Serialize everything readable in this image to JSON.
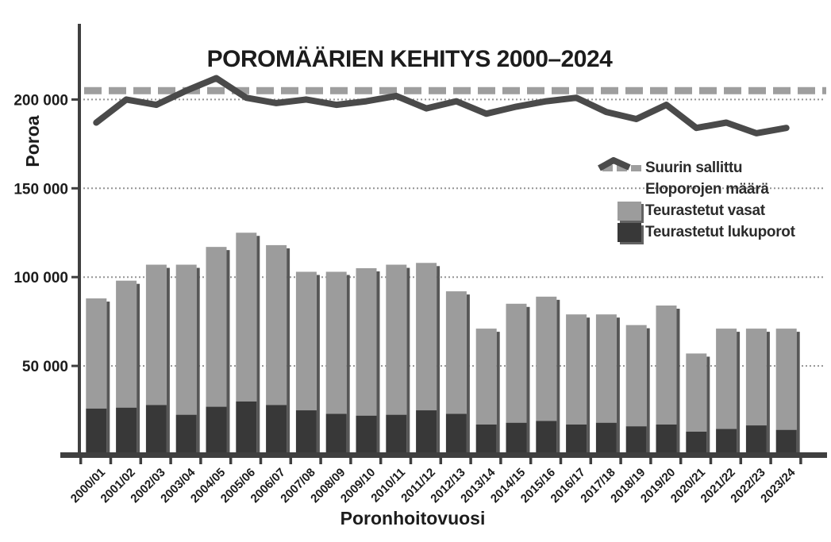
{
  "title": "POROMÄÄRIEN KEHITYS 2000–2024",
  "colors": {
    "background": "#ffffff",
    "bar_dark": "#383838",
    "bar_light": "#9c9c9c",
    "line": "#4a4a4a",
    "dashed_line": "#9e9e9e",
    "axis": "#3f3f3f",
    "grid": "#949494",
    "text": "#1c1c1c"
  },
  "chart_data": {
    "type": "bar",
    "subtype": "stacked-bars-with-line",
    "title": "POROMÄÄRIEN KEHITYS 2000–2024",
    "xlabel": "Poronhoitovuosi",
    "ylabel": "Poroa",
    "ylim": [
      0,
      242000
    ],
    "grid": "horizontal-dotted",
    "legend_position": "right-middle",
    "yticks": [
      {
        "value": 50000,
        "label": "50 000"
      },
      {
        "value": 100000,
        "label": "100 000"
      },
      {
        "value": 150000,
        "label": "150 000"
      },
      {
        "value": 200000,
        "label": "200 000"
      }
    ],
    "categories": [
      "2000/01",
      "2001/02",
      "2002/03",
      "2003/04",
      "2004/05",
      "2005/06",
      "2006/07",
      "2007/08",
      "2008/09",
      "2009/10",
      "2010/11",
      "2011/12",
      "2012/13",
      "2013/14",
      "2014/15",
      "2015/16",
      "2016/17",
      "2017/18",
      "2018/19",
      "2019/20",
      "2020/21",
      "2021/22",
      "2022/23",
      "2023/24"
    ],
    "series": [
      {
        "name": "Teurastetut lukuporot",
        "kind": "bar",
        "stack": "teurastus",
        "color": "#383838",
        "values": [
          26000,
          26500,
          28000,
          22500,
          27000,
          30000,
          28000,
          25000,
          23000,
          22000,
          22500,
          25000,
          23000,
          17000,
          18000,
          19000,
          17000,
          18000,
          16000,
          17000,
          13000,
          14500,
          16500,
          14000
        ]
      },
      {
        "name": "Teurastetut vasat",
        "kind": "bar",
        "stack": "teurastus",
        "color": "#9c9c9c",
        "values": [
          62000,
          71500,
          79000,
          84500,
          90000,
          95000,
          90000,
          78000,
          80000,
          83000,
          84500,
          83000,
          69000,
          54000,
          67000,
          70000,
          62000,
          61000,
          57000,
          67000,
          44000,
          56500,
          54500,
          57000
        ]
      },
      {
        "name": "Eloporojen määrä",
        "kind": "line",
        "color": "#4a4a4a",
        "values": [
          187000,
          200000,
          197000,
          205000,
          212000,
          201000,
          198000,
          200000,
          197000,
          199000,
          202000,
          195000,
          199000,
          192000,
          196000,
          199000,
          201000,
          193000,
          189000,
          197000,
          184000,
          187000,
          181000,
          184000
        ]
      },
      {
        "name": "Suurin sallittu",
        "kind": "dashed-hline",
        "color": "#9e9e9e",
        "value": 205000
      }
    ]
  },
  "legend": {
    "items": [
      {
        "label": "Suurin sallittu",
        "marker": "dashed-line"
      },
      {
        "label": "Eloporojen määrä",
        "marker": "thick-line"
      },
      {
        "label": "Teurastetut vasat",
        "marker": "square-light"
      },
      {
        "label": "Teurastetut lukuporot",
        "marker": "square-dark"
      }
    ]
  }
}
